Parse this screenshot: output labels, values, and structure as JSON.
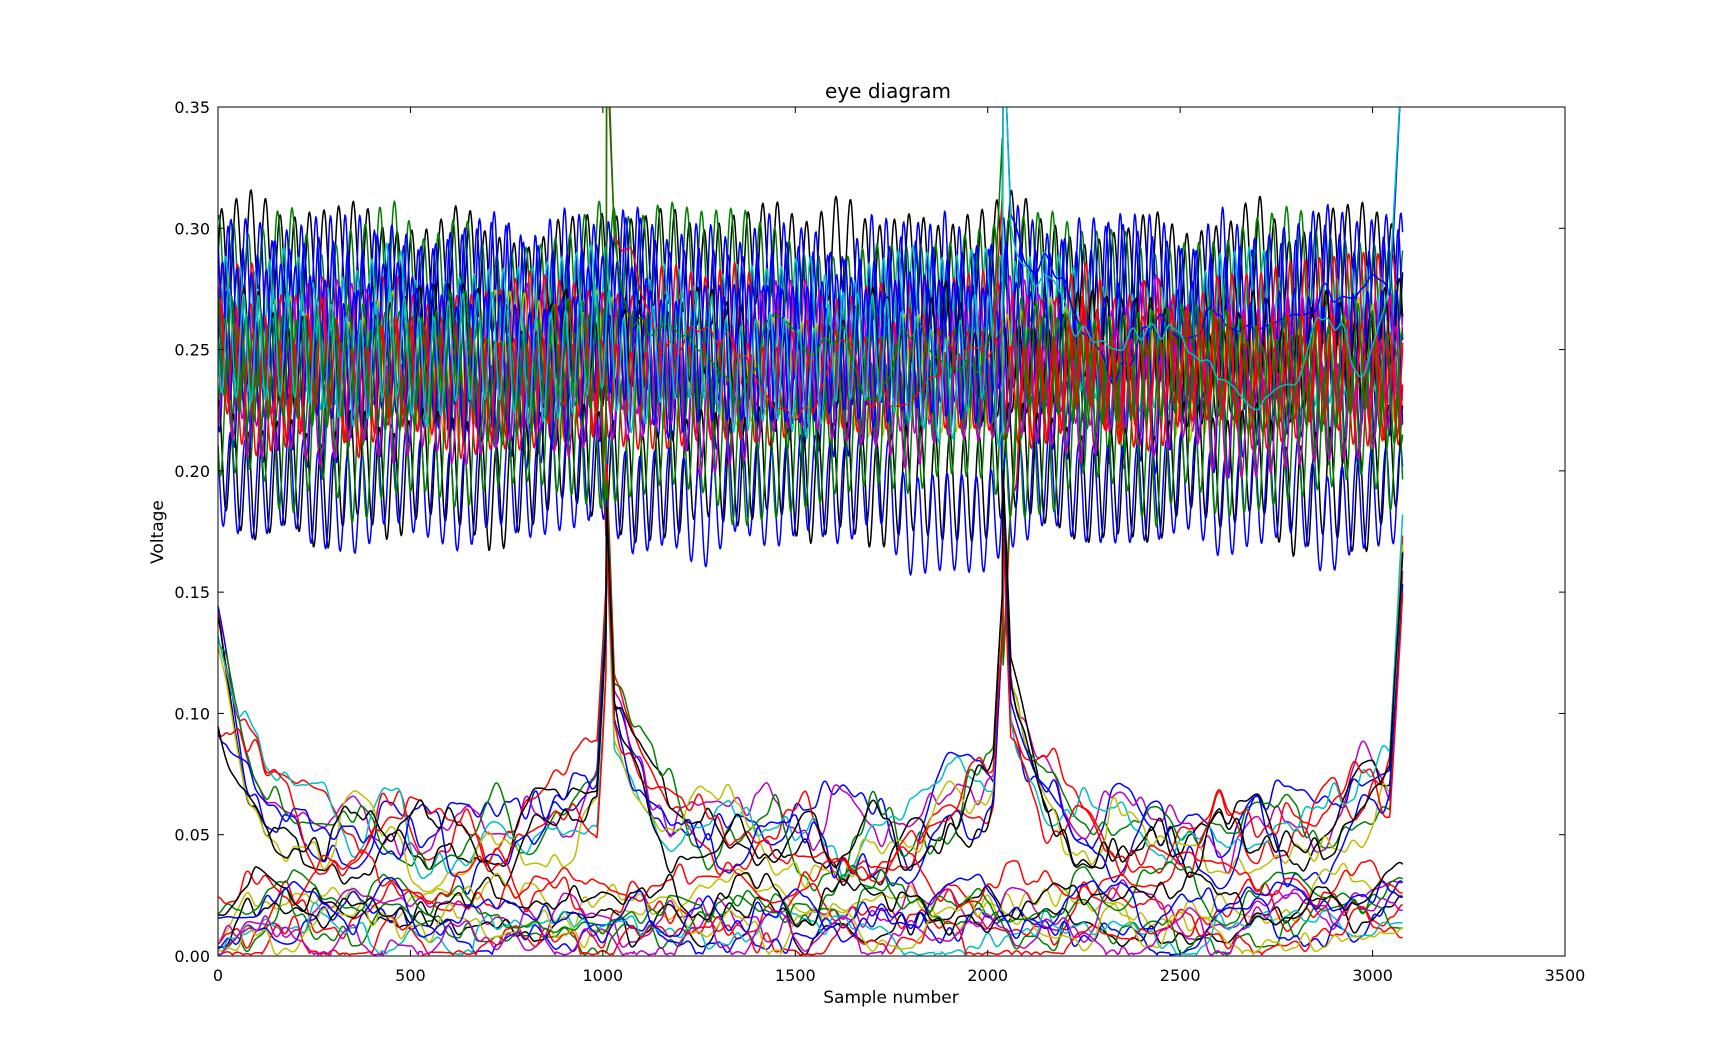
{
  "chart_data": {
    "type": "line",
    "title": "eye diagram",
    "xlabel": "Sample number",
    "ylabel": "Voltage",
    "xlim": [
      0,
      3500
    ],
    "ylim": [
      0,
      0.35
    ],
    "xticks": [
      0,
      500,
      1000,
      1500,
      2000,
      2500,
      3000,
      3500
    ],
    "xtick_labels": [
      "0",
      "500",
      "1000",
      "1500",
      "2000",
      "2500",
      "3000",
      "3500"
    ],
    "yticks": [
      0.0,
      0.05,
      0.1,
      0.15,
      0.2,
      0.25,
      0.3,
      0.35
    ],
    "ytick_labels": [
      "0.00",
      "0.05",
      "0.10",
      "0.15",
      "0.20",
      "0.25",
      "0.30",
      "0.35"
    ],
    "grid": false,
    "legend": "none",
    "sample_count": 3080,
    "ui_boundaries": [
      1010,
      2040,
      3070
    ],
    "oscillation_period": 38,
    "palette": [
      "#0000ff",
      "#008000",
      "#ff0000",
      "#00bfbf",
      "#bf00bf",
      "#bfbf00",
      "#000000"
    ],
    "series": [
      {
        "color": "#000000",
        "pattern": [
          "H",
          "H",
          "H"
        ],
        "level": 0.285,
        "amp": 0.02
      },
      {
        "color": "#008000",
        "pattern": [
          "H",
          "H",
          "H"
        ],
        "level": 0.28,
        "amp": 0.022
      },
      {
        "color": "#0000ff",
        "pattern": [
          "H",
          "H",
          "H"
        ],
        "level": 0.27,
        "amp": 0.03
      },
      {
        "color": "#0000ff",
        "pattern": [
          "H",
          "H",
          "H"
        ],
        "level": 0.265,
        "amp": 0.035
      },
      {
        "color": "#00bfbf",
        "pattern": [
          "H",
          "H",
          "H"
        ],
        "level": 0.26,
        "amp": 0.025
      },
      {
        "color": "#ff0000",
        "pattern": [
          "H",
          "H",
          "H"
        ],
        "level": 0.255,
        "amp": 0.025
      },
      {
        "color": "#bf00bf",
        "pattern": [
          "H",
          "H",
          "H"
        ],
        "level": 0.25,
        "amp": 0.022
      },
      {
        "color": "#bfbf00",
        "pattern": [
          "H",
          "H",
          "H"
        ],
        "level": 0.245,
        "amp": 0.02
      },
      {
        "color": "#000000",
        "pattern": [
          "H",
          "H",
          "H"
        ],
        "level": 0.25,
        "amp": 0.018
      },
      {
        "color": "#0000ff",
        "pattern": [
          "H",
          "H",
          "H"
        ],
        "level": 0.24,
        "amp": 0.03
      },
      {
        "color": "#008000",
        "pattern": [
          "H",
          "H",
          "H"
        ],
        "level": 0.235,
        "amp": 0.022
      },
      {
        "color": "#ff0000",
        "pattern": [
          "H",
          "H",
          "H"
        ],
        "level": 0.24,
        "amp": 0.02
      },
      {
        "color": "#000000",
        "pattern": [
          "H",
          "H",
          "H"
        ],
        "level": 0.2,
        "amp": 0.022
      },
      {
        "color": "#0000ff",
        "pattern": [
          "H",
          "H",
          "H"
        ],
        "level": 0.19,
        "amp": 0.02
      },
      {
        "color": "#008000",
        "pattern": [
          "H",
          "H",
          "H"
        ],
        "level": 0.215,
        "amp": 0.025
      },
      {
        "color": "#bf00bf",
        "pattern": [
          "H",
          "H",
          "H"
        ],
        "level": 0.23,
        "amp": 0.02
      },
      {
        "color": "#0000ff",
        "pattern": [
          "H",
          "H",
          "L"
        ],
        "level": 0.25,
        "amp": 0.028
      },
      {
        "color": "#ff0000",
        "pattern": [
          "H",
          "L",
          "H"
        ],
        "level": 0.24,
        "amp": 0.022
      },
      {
        "color": "#008000",
        "pattern": [
          "H",
          "L",
          "H"
        ],
        "level": 0.245,
        "amp": 0.022
      },
      {
        "color": "#00bfbf",
        "pattern": [
          "H",
          "H",
          "L"
        ],
        "level": 0.245,
        "amp": 0.022
      },
      {
        "color": "#0000ff",
        "pattern": [
          "L",
          "L",
          "L"
        ],
        "level": 0.055,
        "amp": 0.0
      },
      {
        "color": "#bf00bf",
        "pattern": [
          "L",
          "L",
          "L"
        ],
        "level": 0.052,
        "amp": 0.0
      },
      {
        "color": "#ff0000",
        "pattern": [
          "L",
          "L",
          "L"
        ],
        "level": 0.05,
        "amp": 0.0
      },
      {
        "color": "#000000",
        "pattern": [
          "L",
          "L",
          "L"
        ],
        "level": 0.048,
        "amp": 0.0
      },
      {
        "color": "#008000",
        "pattern": [
          "L",
          "L",
          "L"
        ],
        "level": 0.05,
        "amp": 0.0
      },
      {
        "color": "#00bfbf",
        "pattern": [
          "L",
          "L",
          "L"
        ],
        "level": 0.05,
        "amp": 0.0
      },
      {
        "color": "#bfbf00",
        "pattern": [
          "L",
          "L",
          "L"
        ],
        "level": 0.045,
        "amp": 0.0
      },
      {
        "color": "#0000ff",
        "pattern": [
          "L",
          "L",
          "L"
        ],
        "level": 0.045,
        "amp": 0.0
      },
      {
        "color": "#ff0000",
        "pattern": [
          "L",
          "L",
          "L"
        ],
        "level": 0.045,
        "amp": 0.0
      },
      {
        "color": "#000000",
        "pattern": [
          "L",
          "L",
          "L"
        ],
        "level": 0.045,
        "amp": 0.0
      },
      {
        "color": "#bfbf00",
        "pattern": [
          "F",
          "F",
          "F"
        ],
        "level": 0.02,
        "amp": 0.0
      },
      {
        "color": "#ff0000",
        "pattern": [
          "F",
          "F",
          "F"
        ],
        "level": 0.018,
        "amp": 0.0
      },
      {
        "color": "#bf00bf",
        "pattern": [
          "F",
          "F",
          "F"
        ],
        "level": 0.017,
        "amp": 0.0
      },
      {
        "color": "#000000",
        "pattern": [
          "F",
          "F",
          "F"
        ],
        "level": 0.015,
        "amp": 0.0
      },
      {
        "color": "#008000",
        "pattern": [
          "F",
          "F",
          "F"
        ],
        "level": 0.014,
        "amp": 0.0
      },
      {
        "color": "#0000ff",
        "pattern": [
          "F",
          "F",
          "F"
        ],
        "level": 0.013,
        "amp": 0.0
      },
      {
        "color": "#00bfbf",
        "pattern": [
          "F",
          "F",
          "F"
        ],
        "level": 0.008,
        "amp": 0.0
      },
      {
        "color": "#ff0000",
        "pattern": [
          "F",
          "F",
          "F"
        ],
        "level": 0.004,
        "amp": 0.0
      },
      {
        "color": "#bfbf00",
        "pattern": [
          "F",
          "F",
          "F"
        ],
        "level": 0.01,
        "amp": 0.0
      },
      {
        "color": "#bf00bf",
        "pattern": [
          "F",
          "F",
          "F"
        ],
        "level": 0.007,
        "amp": 0.0
      },
      {
        "color": "#008000",
        "pattern": [
          "F",
          "F",
          "F"
        ],
        "level": 0.024,
        "amp": 0.0
      },
      {
        "color": "#ff0000",
        "pattern": [
          "F",
          "F",
          "F"
        ],
        "level": 0.03,
        "amp": 0.0
      },
      {
        "color": "#000000",
        "pattern": [
          "F",
          "F",
          "F"
        ],
        "level": 0.022,
        "amp": 0.0
      },
      {
        "color": "#0000ff",
        "pattern": [
          "F",
          "F",
          "F"
        ],
        "level": 0.02,
        "amp": 0.0
      }
    ]
  }
}
